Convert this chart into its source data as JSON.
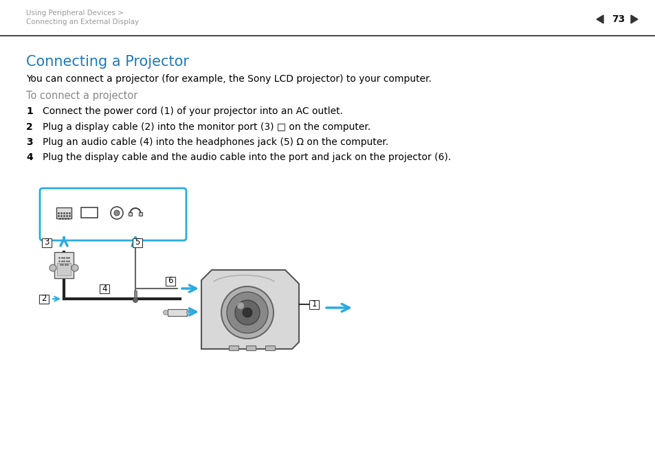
{
  "bg_color": "#ffffff",
  "header_text1": "Using Peripheral Devices >",
  "header_text2": "Connecting an External Display",
  "header_color": "#999999",
  "page_number": "73",
  "title": "Connecting a Projector",
  "title_color": "#1a7abf",
  "title_fontsize": 15,
  "body_text": "You can connect a projector (for example, the Sony LCD projector) to your computer.",
  "body_fontsize": 10,
  "body_color": "#000000",
  "subheading": "To connect a projector",
  "subheading_color": "#888888",
  "subheading_fontsize": 10.5,
  "steps": [
    "Connect the power cord (1) of your projector into an AC outlet.",
    "Plug a display cable (2) into the monitor port (3) □ on the computer.",
    "Plug an audio cable (4) into the headphones jack (5) Ω on the computer.",
    "Plug the display cable and the audio cable into the port and jack on the projector (6)."
  ],
  "step_fontsize": 10,
  "step_color": "#000000",
  "diagram_box_color": "#29abe2",
  "arrow_color": "#29abe2",
  "label_color": "#000000",
  "label_fontsize": 8.5
}
